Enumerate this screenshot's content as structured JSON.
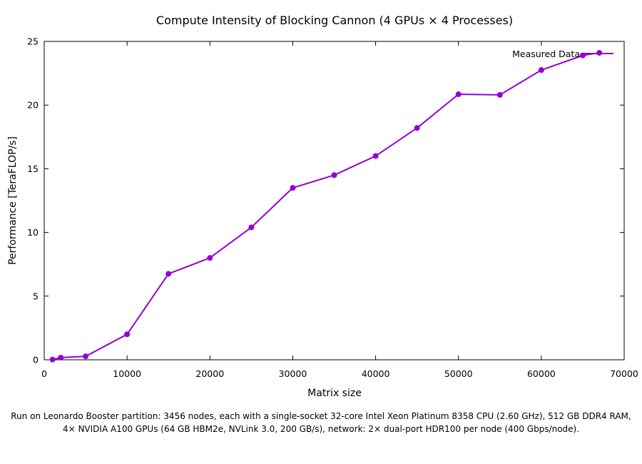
{
  "chart_data": {
    "type": "line",
    "title": "Compute Intensity of Blocking Cannon (4 GPUs × 4 Processes)",
    "xlabel": "Matrix size",
    "ylabel": "Performance [TeraFLOP/s]",
    "xlim": [
      0,
      70000
    ],
    "ylim": [
      0,
      25
    ],
    "xticks": [
      0,
      10000,
      20000,
      30000,
      40000,
      50000,
      60000,
      70000
    ],
    "yticks": [
      0,
      5,
      10,
      15,
      20,
      25
    ],
    "grid": false,
    "legend_position": "top-right",
    "series": [
      {
        "name": "Measured Data",
        "color": "#9400d3",
        "x": [
          1000,
          2000,
          5000,
          10000,
          15000,
          20000,
          25000,
          30000,
          35000,
          40000,
          45000,
          50000,
          55000,
          60000,
          65000,
          67000
        ],
        "y": [
          0.02,
          0.17,
          0.27,
          2.0,
          6.75,
          8.0,
          10.4,
          13.5,
          14.5,
          16.0,
          18.2,
          20.85,
          20.8,
          22.75,
          23.9,
          24.1
        ]
      }
    ]
  },
  "caption": {
    "line1": "Run on Leonardo Booster partition: 3456 nodes, each with a single-socket 32-core Intel Xeon Platinum 8358 CPU (2.60 GHz), 512 GB DDR4 RAM,",
    "line2": "4× NVIDIA A100 GPUs (64 GB HBM2e, NVLink 3.0, 200 GB/s), network: 2× dual-port HDR100 per node (400 Gbps/node)."
  }
}
